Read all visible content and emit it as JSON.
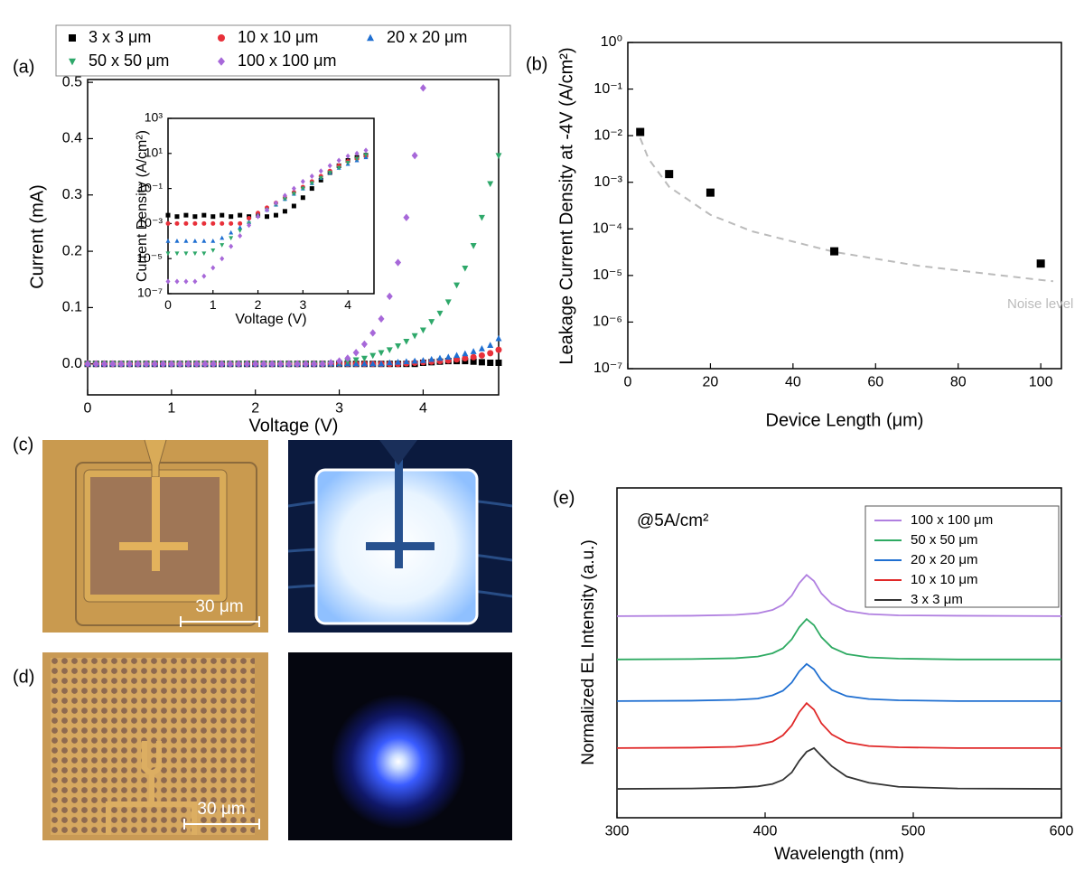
{
  "chart_data": [
    {
      "type": "scatter",
      "panel_label": "(a)",
      "x_label": "Voltage (V)",
      "y_label": "Current (mA)",
      "xlim": [
        0,
        4.9
      ],
      "ylim": [
        -0.055,
        0.505
      ],
      "xticks": [
        0,
        1,
        2,
        3,
        4
      ],
      "yticks": [
        {
          "value": 0,
          "label": "0.0"
        },
        0.1,
        0.2,
        0.3,
        0.4,
        0.5
      ],
      "x": [
        0,
        0.1,
        0.2,
        0.3,
        0.4,
        0.5,
        0.6,
        0.7,
        0.8,
        0.9,
        1,
        1.1,
        1.2,
        1.3,
        1.4,
        1.5,
        1.6,
        1.7,
        1.8,
        1.9,
        2,
        2.1,
        2.2,
        2.3,
        2.4,
        2.5,
        2.6,
        2.7,
        2.8,
        2.9,
        3,
        3.1,
        3.2,
        3.3,
        3.4,
        3.5,
        3.6,
        3.7,
        3.8,
        3.9,
        4,
        4.1,
        4.2,
        4.3,
        4.4,
        4.5,
        4.6,
        4.7,
        4.8,
        4.9
      ],
      "series": [
        {
          "name": "3 x 3 μm",
          "color": "#000000",
          "marker": "square",
          "values": [
            0,
            0,
            0,
            0,
            0,
            0,
            0,
            0,
            0,
            0,
            0,
            0,
            0,
            0,
            0,
            0,
            0,
            0,
            0,
            0,
            0,
            0,
            0,
            0,
            0,
            0,
            0,
            0,
            0,
            0,
            0,
            0,
            0,
            0,
            0,
            0,
            0,
            0,
            0,
            0,
            0.002,
            0.003,
            0.004,
            0.005,
            0.005,
            0.005,
            0.004,
            0.003,
            0.002,
            0.002
          ]
        },
        {
          "name": "10 x 10 μm",
          "color": "#e8303a",
          "marker": "circle",
          "values": [
            0,
            0,
            0,
            0,
            0,
            0,
            0,
            0,
            0,
            0,
            0,
            0,
            0,
            0,
            0,
            0,
            0,
            0,
            0,
            0,
            0,
            0,
            0,
            0,
            0,
            0,
            0,
            0,
            0,
            0,
            0,
            0,
            0,
            0,
            0,
            0,
            0,
            0,
            0.001,
            0.002,
            0.003,
            0.004,
            0.005,
            0.006,
            0.008,
            0.01,
            0.012,
            0.015,
            0.019,
            0.025
          ]
        },
        {
          "name": "20 x 20 μm",
          "color": "#1f6fd1",
          "marker": "triangle-up",
          "values": [
            0,
            0,
            0,
            0,
            0,
            0,
            0,
            0,
            0,
            0,
            0,
            0,
            0,
            0,
            0,
            0,
            0,
            0,
            0,
            0,
            0,
            0,
            0,
            0,
            0,
            0,
            0,
            0,
            0,
            0,
            0,
            0,
            0,
            0,
            0,
            0,
            0.002,
            0.003,
            0.004,
            0.005,
            0.006,
            0.008,
            0.01,
            0.012,
            0.015,
            0.018,
            0.022,
            0.027,
            0.033,
            0.045
          ]
        },
        {
          "name": "50 x 50 μm",
          "color": "#2ea86a",
          "marker": "triangle-down",
          "values": [
            0,
            0,
            0,
            0,
            0,
            0,
            0,
            0,
            0,
            0,
            0,
            0,
            0,
            0,
            0,
            0,
            0,
            0,
            0,
            0,
            0,
            0,
            0,
            0,
            0,
            0,
            0,
            0,
            0,
            0,
            0.002,
            0.004,
            0.007,
            0.01,
            0.015,
            0.02,
            0.025,
            0.032,
            0.04,
            0.05,
            0.06,
            0.075,
            0.09,
            0.11,
            0.14,
            0.17,
            0.21,
            0.26,
            0.32,
            0.37
          ]
        },
        {
          "name": "100 x 100 μm",
          "color": "#a768d9",
          "marker": "diamond",
          "values": [
            0,
            0,
            0,
            0,
            0,
            0,
            0,
            0,
            0,
            0,
            0,
            0,
            0,
            0,
            0,
            0,
            0,
            0,
            0,
            0,
            0,
            0,
            0,
            0,
            0,
            0,
            0,
            0,
            0,
            0.002,
            0.005,
            0.01,
            0.02,
            0.035,
            0.055,
            0.08,
            0.12,
            0.18,
            0.26,
            0.37,
            0.49,
            null,
            null,
            null,
            null,
            null,
            null,
            null,
            null,
            null
          ]
        }
      ]
    },
    {
      "type": "scatter",
      "x_label": "Voltage (V)",
      "y_label": "Current Density (A/cm²)",
      "log_y": true,
      "xlim": [
        0,
        4.58
      ],
      "ylim": [
        1e-07,
        1000
      ],
      "xticks": [
        0,
        1,
        2,
        3,
        4
      ],
      "yticks": [
        {
          "value": 1000,
          "label": "10³"
        },
        {
          "value": 10,
          "label": "10¹"
        },
        {
          "value": 0.1,
          "label": "10⁻¹"
        },
        {
          "value": 0.001,
          "label": "10⁻³"
        },
        {
          "value": 1e-05,
          "label": "10⁻⁵"
        },
        {
          "value": 1e-07,
          "label": "10⁻⁷"
        }
      ],
      "x": [
        0,
        0.2,
        0.4,
        0.6,
        0.8,
        1,
        1.2,
        1.4,
        1.6,
        1.8,
        2,
        2.2,
        2.4,
        2.6,
        2.8,
        3,
        3.2,
        3.4,
        3.6,
        3.8,
        4,
        4.2,
        4.4
      ],
      "series": [
        {
          "color": "#000000",
          "marker": "square",
          "values": [
            0.003,
            0.0025,
            0.003,
            0.0025,
            0.003,
            0.0025,
            0.003,
            0.0025,
            0.003,
            0.0025,
            0.003,
            0.0025,
            0.003,
            0.005,
            0.01,
            0.03,
            0.1,
            0.3,
            0.8,
            2,
            4,
            6,
            8
          ]
        },
        {
          "color": "#e8303a",
          "marker": "circle",
          "values": [
            0.001,
            0.001,
            0.001,
            0.001,
            0.001,
            0.001,
            0.001,
            0.001,
            0.001,
            0.002,
            0.004,
            0.008,
            0.015,
            0.03,
            0.06,
            0.12,
            0.25,
            0.5,
            1,
            2,
            3.5,
            5,
            7
          ]
        },
        {
          "color": "#1f6fd1",
          "marker": "triangle-up",
          "values": [
            0.0001,
            0.0001,
            0.0001,
            0.0001,
            0.0001,
            0.0001,
            0.00015,
            0.0003,
            0.0006,
            0.0012,
            0.003,
            0.006,
            0.012,
            0.025,
            0.05,
            0.1,
            0.2,
            0.4,
            0.8,
            1.5,
            2.5,
            4,
            6
          ]
        },
        {
          "color": "#2ea86a",
          "marker": "triangle-down",
          "values": [
            2e-05,
            2e-05,
            2e-05,
            2e-05,
            2e-05,
            3e-05,
            6e-05,
            0.00015,
            0.0004,
            0.001,
            0.0025,
            0.006,
            0.012,
            0.025,
            0.05,
            0.1,
            0.2,
            0.4,
            0.8,
            1.5,
            3,
            5,
            8
          ]
        },
        {
          "color": "#a768d9",
          "marker": "diamond",
          "values": [
            5e-07,
            5e-07,
            5e-07,
            5e-07,
            1e-06,
            3e-06,
            1e-05,
            5e-05,
            0.0002,
            0.0008,
            0.0025,
            0.006,
            0.015,
            0.04,
            0.1,
            0.25,
            0.5,
            1,
            2,
            4,
            7,
            10,
            15
          ]
        }
      ]
    },
    {
      "type": "scatter",
      "panel_label": "(b)",
      "x_label": "Device Length (μm)",
      "y_label": "Leakage Current Density at -4V (A/cm²)",
      "log_y": true,
      "annotation": "Noise level",
      "xlim": [
        0,
        105
      ],
      "ylim": [
        1e-07,
        1
      ],
      "xticks": [
        0,
        20,
        40,
        60,
        80,
        100
      ],
      "yticks": [
        {
          "value": 1,
          "label": "10⁰"
        },
        {
          "value": 0.1,
          "label": "10⁻¹"
        },
        {
          "value": 0.01,
          "label": "10⁻²"
        },
        {
          "value": 0.001,
          "label": "10⁻³"
        },
        {
          "value": 0.0001,
          "label": "10⁻⁴"
        },
        {
          "value": 1e-05,
          "label": "10⁻⁵"
        },
        {
          "value": 1e-06,
          "label": "10⁻⁶"
        },
        {
          "value": 1e-07,
          "label": "10⁻⁷"
        }
      ],
      "x": [
        3,
        10,
        20,
        50,
        100
      ],
      "series": [
        {
          "color": "#000000",
          "marker": "square",
          "values": [
            0.012,
            0.0015,
            0.0006,
            3.3e-05,
            1.8e-05
          ]
        }
      ],
      "fit": {
        "color": "#bbbbbb",
        "x": [
          3,
          5,
          10,
          20,
          30,
          50,
          70,
          100,
          103
        ],
        "values": [
          0.0089,
          0.0032,
          0.0008,
          0.0002,
          8.9e-05,
          3.2e-05,
          1.63e-05,
          8e-06,
          7.5e-06
        ]
      }
    },
    {
      "type": "line",
      "panel_label": "(e)",
      "x_label": "Wavelength (nm)",
      "y_label": "Normalized EL Intensity (a.u.)",
      "annotation": "@5A/cm²",
      "xlim": [
        300,
        600
      ],
      "ylim": [
        0,
        8
      ],
      "xticks": [
        300,
        400,
        500,
        600
      ],
      "x": [
        300,
        350,
        380,
        395,
        405,
        412,
        418,
        423,
        428,
        433,
        438,
        445,
        455,
        470,
        490,
        530,
        600
      ],
      "series": [
        {
          "name": "100 x 100 μm",
          "color": "#b07fe0",
          "values": [
            4.89,
            4.9,
            4.92,
            4.96,
            5.04,
            5.17,
            5.39,
            5.69,
            5.89,
            5.74,
            5.44,
            5.19,
            5.02,
            4.94,
            4.91,
            4.9,
            4.89
          ]
        },
        {
          "name": "50 x 50 μm",
          "color": "#2eaa62",
          "values": [
            3.84,
            3.85,
            3.87,
            3.91,
            3.99,
            4.11,
            4.33,
            4.62,
            4.82,
            4.67,
            4.38,
            4.13,
            3.97,
            3.89,
            3.86,
            3.84,
            3.84
          ]
        },
        {
          "name": "20 x 20 μm",
          "color": "#1f6fd1",
          "values": [
            2.83,
            2.84,
            2.86,
            2.89,
            2.97,
            3.08,
            3.28,
            3.55,
            3.73,
            3.6,
            3.33,
            3.1,
            2.95,
            2.88,
            2.85,
            2.83,
            2.83
          ]
        },
        {
          "name": "10 x 10 μm",
          "color": "#e02828",
          "values": [
            1.69,
            1.7,
            1.72,
            1.77,
            1.85,
            2.0,
            2.24,
            2.56,
            2.78,
            2.62,
            2.29,
            2.02,
            1.83,
            1.74,
            1.71,
            1.69,
            1.69
          ]
        },
        {
          "name": "3 x 3 μm",
          "color": "#333333",
          "values": [
            0.7,
            0.71,
            0.73,
            0.76,
            0.82,
            0.92,
            1.1,
            1.38,
            1.6,
            1.69,
            1.5,
            1.25,
            1.0,
            0.85,
            0.75,
            0.71,
            0.7
          ]
        }
      ]
    }
  ],
  "images": [
    {
      "label": "(c)",
      "scale_bar": "30 μm"
    },
    {
      "label": "(d)",
      "scale_bar": "30 μm"
    }
  ]
}
